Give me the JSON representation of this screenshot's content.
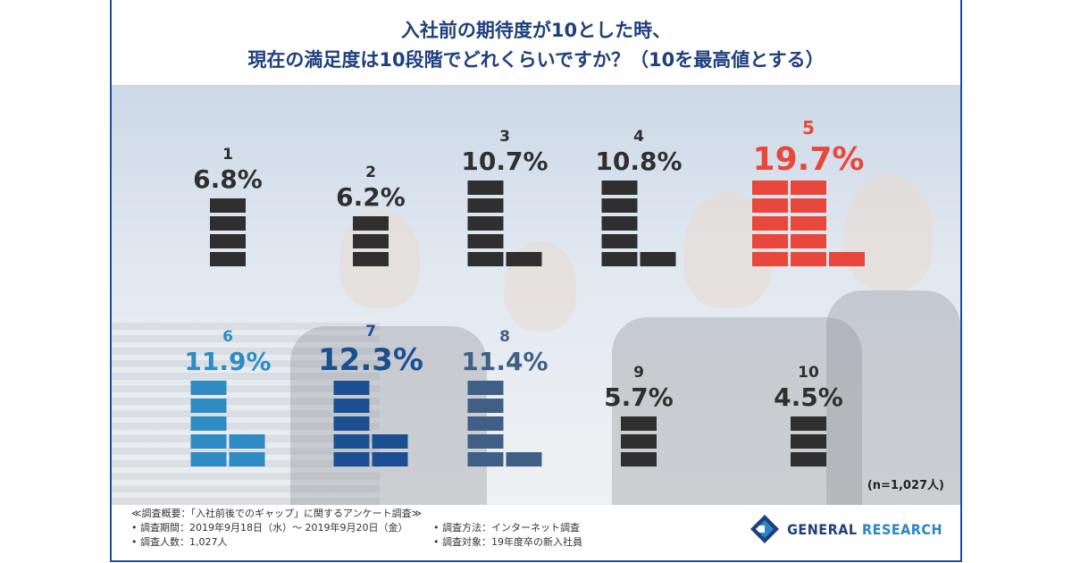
{
  "title": {
    "line1": "入社前の期待度が10とした時、",
    "line2": "現在の満足度は10段階でどれくらいですか？（10を最高値とする）"
  },
  "colors": {
    "accent": "#1f3f7f",
    "highlight": "#e8483b",
    "dark": "#2f2f2f",
    "blue6": "#2e8bc4",
    "blue7": "#1c4f92",
    "blue8": "#3f5f86"
  },
  "chart_data": {
    "type": "bar",
    "title": "入社前の期待度が10とした時、現在の満足度は10段階でどれくらいですか？（10を最高値とする）",
    "categories": [
      "1",
      "2",
      "3",
      "4",
      "5",
      "6",
      "7",
      "8",
      "9",
      "10"
    ],
    "values": [
      6.8,
      6.2,
      10.7,
      10.8,
      19.7,
      11.9,
      12.3,
      11.4,
      5.7,
      4.5
    ],
    "value_labels": [
      "6.8%",
      "6.2%",
      "10.7%",
      "10.8%",
      "19.7%",
      "11.9%",
      "12.3%",
      "11.4%",
      "5.7%",
      "4.5%"
    ],
    "highlighted_category": "5",
    "grid": false
  },
  "n_note": "(n=1,027人)",
  "notes": {
    "header": "≪調査概要：「入社前後でのギャップ」に関するアンケート調査≫",
    "period": "• 調査期間：2019年9月18日（水）～ 2019年9月20日（金）",
    "method": "• 調査方法：インターネット調査",
    "count": "• 調査人数：1,027人",
    "target": "• 調査対象：19年度卒の新入社員"
  },
  "logo": {
    "word1": "GENERAL",
    "word2": "RESEARCH",
    "icon": "general-research-logo-icon"
  }
}
